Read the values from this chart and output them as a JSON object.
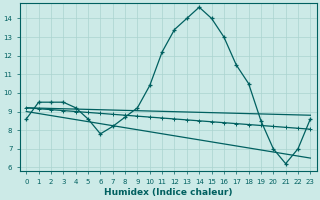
{
  "xlabel": "Humidex (Indice chaleur)",
  "background_color": "#cceae7",
  "grid_color": "#aad4d0",
  "line_color": "#006060",
  "xlim": [
    -0.5,
    23.5
  ],
  "ylim": [
    5.8,
    14.8
  ],
  "yticks": [
    6,
    7,
    8,
    9,
    10,
    11,
    12,
    13,
    14
  ],
  "xticks": [
    0,
    1,
    2,
    3,
    4,
    5,
    6,
    7,
    8,
    9,
    10,
    11,
    12,
    13,
    14,
    15,
    16,
    17,
    18,
    19,
    20,
    21,
    22,
    23
  ],
  "series1_x": [
    0,
    1,
    2,
    3,
    4,
    5,
    6,
    7,
    8,
    9,
    10,
    11,
    12,
    13,
    14,
    15,
    16,
    17,
    18,
    19,
    20,
    21,
    22,
    23
  ],
  "series1_y": [
    8.6,
    9.5,
    9.5,
    9.5,
    9.2,
    8.6,
    7.8,
    8.2,
    8.7,
    9.2,
    10.4,
    12.2,
    13.4,
    14.0,
    14.6,
    14.0,
    13.0,
    11.5,
    10.5,
    8.5,
    7.0,
    6.2,
    7.0,
    8.6
  ],
  "series2_x": [
    0,
    1,
    2,
    3,
    4,
    5,
    6,
    7,
    8,
    9,
    10,
    11,
    12,
    13,
    14,
    15,
    16,
    17,
    18,
    19,
    20,
    21,
    22,
    23
  ],
  "series2_y": [
    9.2,
    9.15,
    9.1,
    9.05,
    9.0,
    8.95,
    8.9,
    8.85,
    8.8,
    8.75,
    8.7,
    8.65,
    8.6,
    8.55,
    8.5,
    8.45,
    8.4,
    8.35,
    8.3,
    8.25,
    8.2,
    8.15,
    8.1,
    8.05
  ],
  "series3_x": [
    0,
    23
  ],
  "series3_y": [
    9.2,
    8.8
  ],
  "series4_x": [
    0,
    23
  ],
  "series4_y": [
    9.0,
    6.5
  ]
}
